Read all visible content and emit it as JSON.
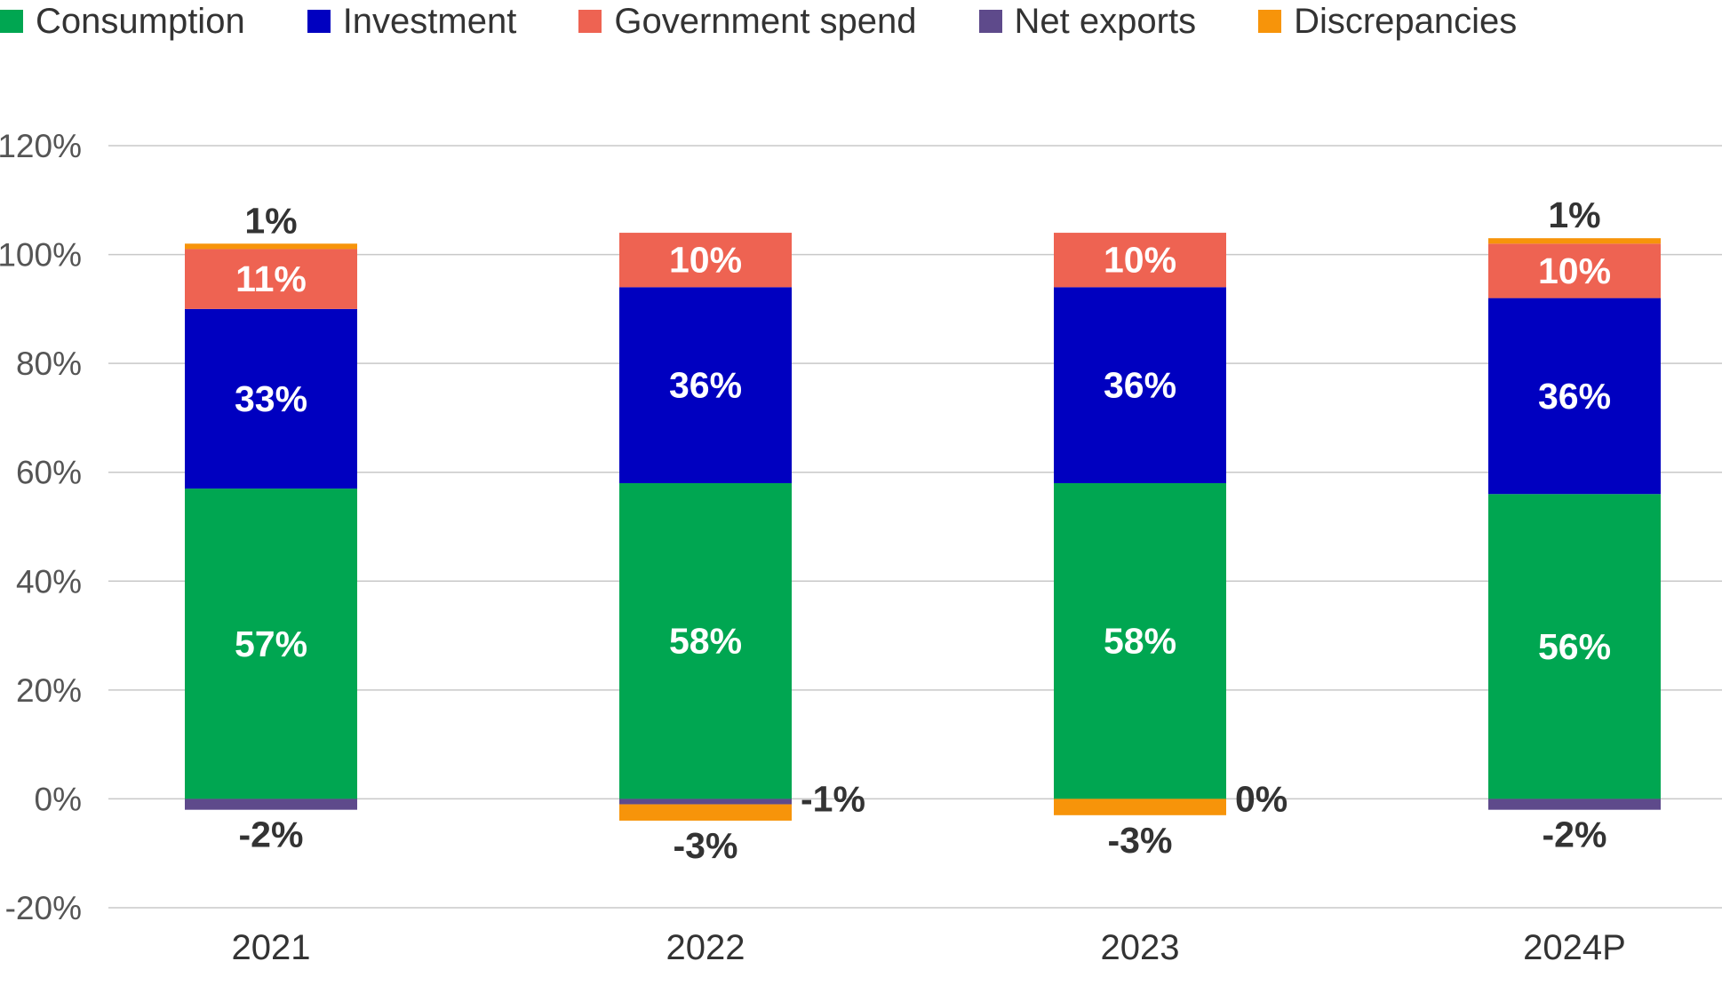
{
  "chart_data": {
    "type": "stacked-bar",
    "categories": [
      "2021",
      "2022",
      "2023",
      "2024P"
    ],
    "series": [
      {
        "name": "Consumption",
        "color": "#00A651",
        "values": [
          57,
          58,
          58,
          56
        ]
      },
      {
        "name": "Investment",
        "color": "#0000C0",
        "values": [
          33,
          36,
          36,
          36
        ]
      },
      {
        "name": "Government spend",
        "color": "#EE6352",
        "values": [
          11,
          10,
          10,
          10
        ]
      },
      {
        "name": "Net exports",
        "color": "#5E4A8B",
        "values": [
          -2,
          -1,
          0,
          -2
        ]
      },
      {
        "name": "Discrepancies",
        "color": "#F7940A",
        "values": [
          1,
          -3,
          -3,
          1
        ]
      }
    ],
    "data_labels": [
      [
        "57%",
        "33%",
        "11%",
        "-2%",
        "1%"
      ],
      [
        "58%",
        "36%",
        "10%",
        "-1%",
        "-3%"
      ],
      [
        "58%",
        "36%",
        "10%",
        "0%",
        "-3%"
      ],
      [
        "56%",
        "36%",
        "10%",
        "-2%",
        "1%"
      ]
    ],
    "yticks": [
      "-20%",
      "0%",
      "20%",
      "40%",
      "60%",
      "80%",
      "100%",
      "120%"
    ],
    "ylim": [
      -20,
      120
    ],
    "grid": true,
    "legend": "top"
  }
}
